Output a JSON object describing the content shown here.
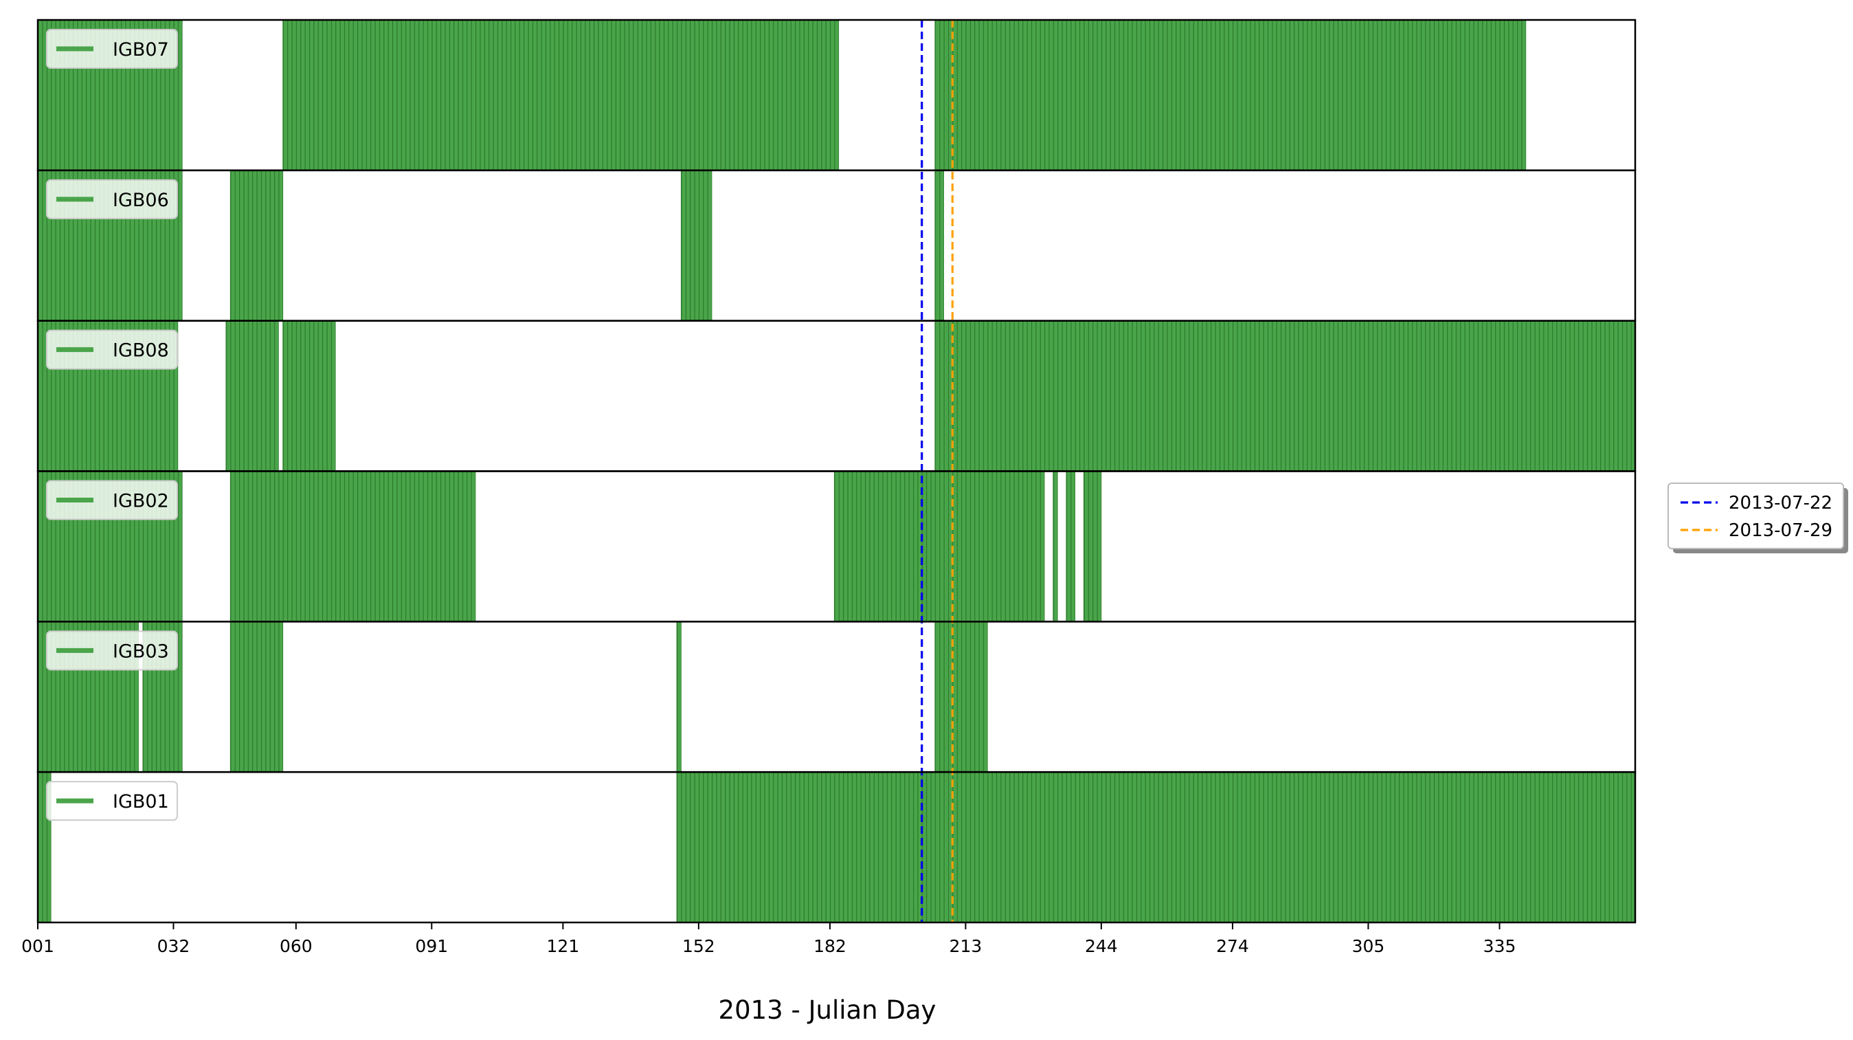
{
  "chart_data": {
    "type": "bar",
    "subtype": "availability-timeline",
    "title": "",
    "xlabel": "2013 - Julian Day",
    "ylabel": "",
    "xlim": [
      1,
      366
    ],
    "xticks": [
      1,
      32,
      60,
      91,
      121,
      152,
      182,
      213,
      244,
      274,
      305,
      335
    ],
    "xtick_labels": [
      "001",
      "032",
      "060",
      "091",
      "121",
      "152",
      "182",
      "213",
      "244",
      "274",
      "305",
      "335"
    ],
    "grid": false,
    "legend_position": "center-right-outside",
    "bar_color": "#4aa54a",
    "bar_edge_color": "#2a7a2a",
    "stations": [
      {
        "name": "IGB07",
        "intervals": [
          [
            1,
            34
          ],
          [
            57,
            184
          ],
          [
            206,
            341
          ]
        ]
      },
      {
        "name": "IGB06",
        "intervals": [
          [
            1,
            34
          ],
          [
            45,
            57
          ],
          [
            148,
            155
          ],
          [
            206,
            208
          ]
        ]
      },
      {
        "name": "IGB08",
        "intervals": [
          [
            1,
            33
          ],
          [
            44,
            56
          ],
          [
            57,
            69
          ],
          [
            206,
            366
          ]
        ]
      },
      {
        "name": "IGB02",
        "intervals": [
          [
            1,
            34
          ],
          [
            45,
            101
          ],
          [
            183,
            231
          ],
          [
            233,
            234
          ],
          [
            236,
            238
          ],
          [
            240,
            244
          ]
        ]
      },
      {
        "name": "IGB03",
        "intervals": [
          [
            1,
            24
          ],
          [
            25,
            34
          ],
          [
            45,
            57
          ],
          [
            147,
            148
          ],
          [
            206,
            218
          ]
        ]
      },
      {
        "name": "IGB01",
        "intervals": [
          [
            1,
            4
          ],
          [
            147,
            366
          ]
        ]
      }
    ],
    "vlines": [
      {
        "label": "2013-07-22",
        "day": 203,
        "color": "#0000ee",
        "style": "dashed"
      },
      {
        "label": "2013-07-29",
        "day": 210,
        "color": "#ffa000",
        "style": "dashed"
      }
    ]
  }
}
